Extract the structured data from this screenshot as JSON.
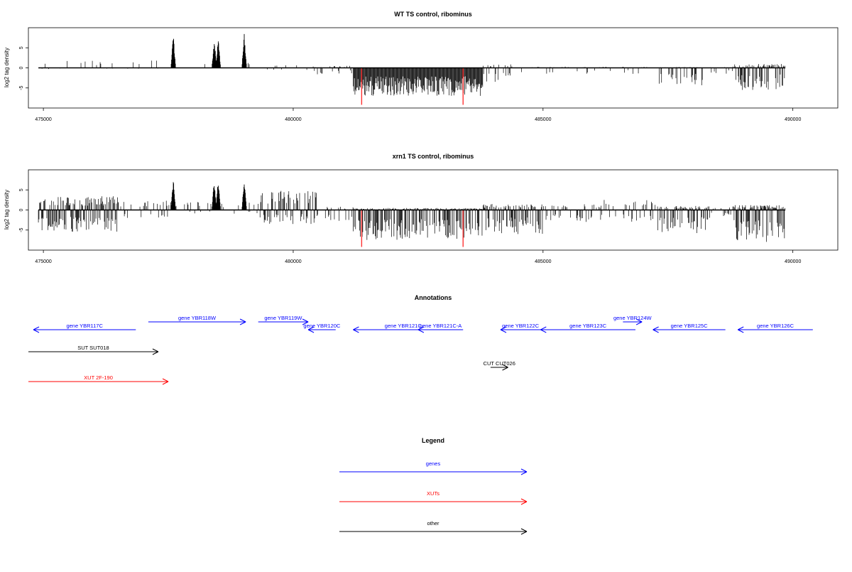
{
  "chart_data": [
    {
      "type": "bar",
      "title": "WT TS control, ribominus",
      "xlabel": "",
      "ylabel": "log2 tag density",
      "xlim": [
        474700,
        490900
      ],
      "ylim": [
        -10,
        10
      ],
      "x_ticks": [
        475000,
        480000,
        485000,
        490000
      ],
      "y_ticks": [
        5,
        0,
        -5
      ],
      "bar_color": "#000000",
      "highlight_color": "#ff3333",
      "positive_peaks": [
        {
          "x": 477600,
          "value": 8.5
        },
        {
          "x": 478420,
          "value": 7.5
        },
        {
          "x": 478500,
          "value": 7.5
        },
        {
          "x": 479020,
          "value": 8.5
        }
      ],
      "highlight_bars": [
        {
          "x": 481370,
          "value": -9.2
        },
        {
          "x": 483400,
          "value": -9.2
        }
      ],
      "baseline": {
        "from": 474900,
        "to": 489850,
        "value": 0
      }
    },
    {
      "type": "bar",
      "title": "xrn1 TS control, ribominus",
      "xlabel": "",
      "ylabel": "log2 tag density",
      "xlim": [
        474700,
        490900
      ],
      "ylim": [
        -10,
        10
      ],
      "x_ticks": [
        475000,
        480000,
        485000,
        490000
      ],
      "y_ticks": [
        5,
        0,
        -5
      ],
      "bar_color": "#000000",
      "highlight_color": "#ff3333",
      "positive_peaks": [
        {
          "x": 477600,
          "value": 8.2
        },
        {
          "x": 478420,
          "value": 8.0
        },
        {
          "x": 478500,
          "value": 8.0
        },
        {
          "x": 479020,
          "value": 8.0
        }
      ],
      "highlight_bars": [
        {
          "x": 481370,
          "value": -9.2
        },
        {
          "x": 483400,
          "value": -9.2
        }
      ],
      "baseline": {
        "from": 474900,
        "to": 489850,
        "value": 0
      }
    }
  ],
  "annotations": {
    "title": "Annotations",
    "xlim": [
      474700,
      490900
    ],
    "features": [
      {
        "label": "gene YBR117C",
        "class": "genes",
        "strand": "-",
        "start": 474800,
        "end": 476850,
        "row": 0
      },
      {
        "label": "gene YBR118W",
        "class": "genes",
        "strand": "+",
        "start": 477100,
        "end": 479050,
        "row": -1
      },
      {
        "label": "gene YBR119W",
        "class": "genes",
        "strand": "+",
        "start": 479300,
        "end": 480300,
        "row": -1
      },
      {
        "label": "gene YBR120C",
        "class": "genes",
        "strand": "-",
        "start": 480300,
        "end": 480850,
        "row": 0
      },
      {
        "label": "gene YBR121C",
        "class": "genes",
        "strand": "-",
        "start": 481200,
        "end": 483200,
        "row": 0
      },
      {
        "label": "gene YBR121C-A",
        "class": "genes",
        "strand": "-",
        "start": 482500,
        "end": 483400,
        "row": 0
      },
      {
        "label": "gene YBR122C",
        "class": "genes",
        "strand": "-",
        "start": 484150,
        "end": 484950,
        "row": 0
      },
      {
        "label": "gene YBR123C",
        "class": "genes",
        "strand": "-",
        "start": 484950,
        "end": 486850,
        "row": 0
      },
      {
        "label": "gene YBR124W",
        "class": "genes",
        "strand": "+",
        "start": 486600,
        "end": 486980,
        "row": -1
      },
      {
        "label": "gene YBR125C",
        "class": "genes",
        "strand": "-",
        "start": 487200,
        "end": 488650,
        "row": 0
      },
      {
        "label": "gene YBR126C",
        "class": "genes",
        "strand": "-",
        "start": 488900,
        "end": 490400,
        "row": 0
      },
      {
        "label": "SUT SUT018",
        "class": "other",
        "strand": "+",
        "start": 474700,
        "end": 477300,
        "row": 1
      },
      {
        "label": "CUT CUT026",
        "class": "other",
        "strand": "+",
        "start": 483950,
        "end": 484300,
        "row": 2
      },
      {
        "label": "XUT 2F-190",
        "class": "XUTs",
        "strand": "+",
        "start": 474700,
        "end": 477500,
        "row": 3
      }
    ]
  },
  "legend": {
    "title": "Legend",
    "items": [
      {
        "label": "genes",
        "color": "#0000ff"
      },
      {
        "label": "XUTs",
        "color": "#ff0000"
      },
      {
        "label": "other",
        "color": "#000000"
      }
    ]
  },
  "colors": {
    "genes": "#0000ff",
    "XUTs": "#ff0000",
    "other": "#000000"
  }
}
